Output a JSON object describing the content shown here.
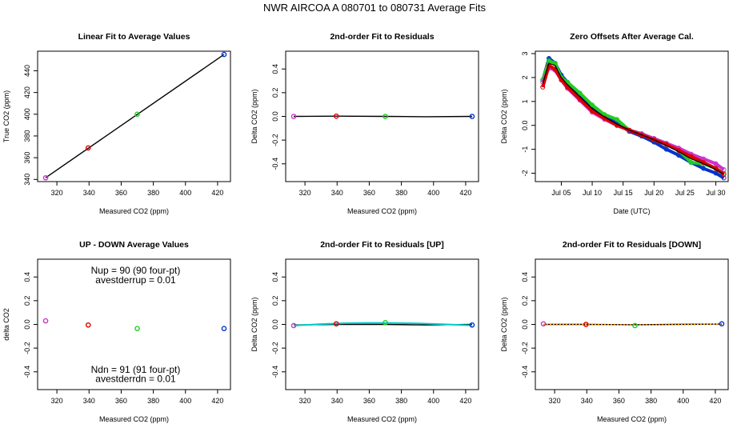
{
  "figure_title": "NWR   AIRCOA A   080701 to 080731   Average Fits",
  "colors": {
    "purple": "#cc33cc",
    "red": "#dd0000",
    "green": "#22cc22",
    "blue": "#0033cc",
    "cyan": "#00cccc",
    "orange": "#ff9900",
    "black": "#000000"
  },
  "chart_data": [
    {
      "id": "p1",
      "type": "scatter",
      "title": "Linear Fit to Average Values",
      "xlabel": "Measured CO2 (ppm)",
      "ylabel": "True CO2 (ppm)",
      "xlim": [
        308,
        428
      ],
      "ylim": [
        338,
        458
      ],
      "xticks": [
        320,
        340,
        360,
        380,
        400,
        420
      ],
      "yticks": [
        340,
        360,
        380,
        400,
        420,
        440
      ],
      "points": [
        {
          "x": 313,
          "y": 341.5,
          "color": "purple"
        },
        {
          "x": 339.5,
          "y": 369,
          "color": "red"
        },
        {
          "x": 370,
          "y": 400,
          "color": "green"
        },
        {
          "x": 424,
          "y": 455,
          "color": "blue"
        }
      ],
      "fit_line": {
        "x": [
          313,
          424
        ],
        "y": [
          341.5,
          455
        ],
        "color": "black"
      }
    },
    {
      "id": "p2",
      "type": "scatter",
      "title": "2nd-order Fit to Residuals",
      "xlabel": "Measured CO2 (ppm)",
      "ylabel": "Delta CO2 (ppm)",
      "xlim": [
        308,
        428
      ],
      "ylim": [
        -0.55,
        0.55
      ],
      "xticks": [
        320,
        340,
        360,
        380,
        400,
        420
      ],
      "yticks": [
        -0.4,
        -0.2,
        0.0,
        0.2,
        0.4
      ],
      "points": [
        {
          "x": 313,
          "y": 0,
          "color": "purple"
        },
        {
          "x": 339.5,
          "y": 0.002,
          "color": "red"
        },
        {
          "x": 370,
          "y": 0,
          "color": "green"
        },
        {
          "x": 424,
          "y": 0,
          "color": "blue"
        }
      ],
      "fit_line": {
        "x": [
          313,
          340,
          370,
          395,
          424
        ],
        "y": [
          0,
          0.002,
          0,
          -0.003,
          0
        ],
        "color": "black"
      }
    },
    {
      "id": "p3",
      "type": "line",
      "title": "Zero Offsets After Average Cal.",
      "xlabel": "Date (UTC)",
      "ylabel": "Delta CO2 (ppm)",
      "xlim": [
        0.8,
        32
      ],
      "ylim": [
        -2.35,
        3.1
      ],
      "xticks": [
        5,
        10,
        15,
        20,
        25,
        30
      ],
      "xticklabels": [
        "Jul 05",
        "Jul 10",
        "Jul 15",
        "Jul 20",
        "Jul 25",
        "Jul 30"
      ],
      "yticks": [
        -2,
        -1,
        0,
        1,
        2,
        3
      ],
      "series": [
        {
          "name": "blue",
          "color": "blue",
          "x": [
            2,
            3,
            4,
            5,
            6,
            8,
            10,
            12,
            14,
            16,
            18,
            20,
            22,
            24,
            26,
            28,
            30,
            31.3
          ],
          "y": [
            1.9,
            2.8,
            2.6,
            2.1,
            1.8,
            1.3,
            0.8,
            0.4,
            0.1,
            -0.25,
            -0.45,
            -0.7,
            -1.0,
            -1.25,
            -1.55,
            -1.8,
            -2.0,
            -2.2
          ]
        },
        {
          "name": "green",
          "color": "green",
          "x": [
            2,
            3,
            4,
            5,
            6,
            8,
            10,
            12,
            14,
            16,
            18,
            20,
            22,
            24,
            26,
            28,
            30,
            31.3
          ],
          "y": [
            1.9,
            2.7,
            2.6,
            2.0,
            1.8,
            1.35,
            0.85,
            0.45,
            0.25,
            -0.2,
            -0.35,
            -0.55,
            -0.75,
            -1.05,
            -1.55,
            -1.6,
            -1.8,
            -2.0
          ]
        },
        {
          "name": "purple",
          "color": "purple",
          "x": [
            2,
            3,
            4,
            5,
            6,
            8,
            10,
            12,
            14,
            16,
            18,
            20,
            22,
            24,
            26,
            28,
            30,
            31.3
          ],
          "y": [
            1.8,
            2.4,
            2.3,
            1.9,
            1.55,
            1.05,
            0.55,
            0.25,
            0.0,
            -0.2,
            -0.35,
            -0.55,
            -0.75,
            -0.95,
            -1.2,
            -1.4,
            -1.6,
            -1.85
          ]
        },
        {
          "name": "red",
          "color": "red",
          "x": [
            2,
            3,
            4,
            5,
            6,
            8,
            10,
            12,
            14,
            16,
            18,
            20,
            22,
            24,
            26,
            28,
            30,
            31.3
          ],
          "y": [
            1.6,
            2.5,
            2.35,
            1.9,
            1.6,
            1.1,
            0.6,
            0.3,
            0.0,
            -0.2,
            -0.4,
            -0.6,
            -0.8,
            -1.05,
            -1.3,
            -1.55,
            -1.8,
            -2.05
          ]
        },
        {
          "name": "black",
          "color": "black",
          "x": [
            2,
            3,
            4,
            5,
            6,
            8,
            10,
            12,
            14,
            16,
            18,
            20,
            22,
            24,
            26,
            28,
            30,
            31.3
          ],
          "y": [
            1.75,
            2.6,
            2.5,
            2.0,
            1.7,
            1.2,
            0.7,
            0.35,
            0.05,
            -0.2,
            -0.4,
            -0.6,
            -0.85,
            -1.1,
            -1.4,
            -1.6,
            -1.85,
            -2.05
          ]
        }
      ]
    },
    {
      "id": "p4",
      "type": "scatter",
      "title": "UP - DOWN Average Values",
      "xlabel": "Measured CO2 (ppm)",
      "ylabel": "delta CO2",
      "xlim": [
        308,
        428
      ],
      "ylim": [
        -0.55,
        0.55
      ],
      "xticks": [
        320,
        340,
        360,
        380,
        400,
        420
      ],
      "yticks": [
        -0.4,
        -0.2,
        0.0,
        0.2,
        0.4
      ],
      "points": [
        {
          "x": 313,
          "y": 0.03,
          "color": "purple"
        },
        {
          "x": 339.5,
          "y": -0.005,
          "color": "red"
        },
        {
          "x": 370,
          "y": -0.035,
          "color": "green"
        },
        {
          "x": 424,
          "y": -0.035,
          "color": "blue"
        }
      ],
      "annotations": [
        {
          "text": "Nup = 90 (90 four-pt)",
          "x": 369,
          "y": 0.455
        },
        {
          "text": "avestderrup =  0.01",
          "x": 369,
          "y": 0.375
        },
        {
          "text": "Ndn = 91 (91 four-pt)",
          "x": 369,
          "y": -0.38
        },
        {
          "text": "avestderrdn =  0.01",
          "x": 369,
          "y": -0.46
        }
      ]
    },
    {
      "id": "p5",
      "type": "scatter",
      "title": "2nd-order Fit to Residuals [UP]",
      "xlabel": "Measured CO2 (ppm)",
      "ylabel": "Delta CO2 (ppm)",
      "xlim": [
        308,
        428
      ],
      "ylim": [
        -0.55,
        0.55
      ],
      "xticks": [
        320,
        340,
        360,
        380,
        400,
        420
      ],
      "yticks": [
        -0.4,
        -0.2,
        0.0,
        0.2,
        0.4
      ],
      "points": [
        {
          "x": 313,
          "y": -0.01,
          "color": "purple"
        },
        {
          "x": 339.5,
          "y": 0.005,
          "color": "red"
        },
        {
          "x": 370,
          "y": 0.015,
          "color": "green"
        },
        {
          "x": 424,
          "y": -0.005,
          "color": "blue"
        }
      ],
      "fit_line": {
        "x": [
          313,
          340,
          370,
          395,
          424
        ],
        "y": [
          -0.005,
          0.0,
          0.0,
          -0.005,
          0.0
        ],
        "color": "black"
      },
      "fit_line2": {
        "x": [
          313,
          330,
          345,
          360,
          375,
          390,
          405,
          424
        ],
        "y": [
          -0.01,
          0.003,
          0.01,
          0.013,
          0.012,
          0.008,
          0.002,
          -0.008
        ],
        "color": "cyan"
      }
    },
    {
      "id": "p6",
      "type": "scatter",
      "title": "2nd-order Fit to Residuals [DOWN]",
      "xlabel": "Measured CO2 (ppm)",
      "ylabel": "Delta CO2 (ppm)",
      "xlim": [
        308,
        428
      ],
      "ylim": [
        -0.55,
        0.55
      ],
      "xticks": [
        320,
        340,
        360,
        380,
        400,
        420
      ],
      "yticks": [
        -0.4,
        -0.2,
        0.0,
        0.2,
        0.4
      ],
      "points": [
        {
          "x": 313,
          "y": 0.005,
          "color": "purple"
        },
        {
          "x": 339.5,
          "y": 0.0,
          "color": "red"
        },
        {
          "x": 370,
          "y": -0.01,
          "color": "green"
        },
        {
          "x": 424,
          "y": 0.005,
          "color": "blue"
        }
      ],
      "fit_line": {
        "x": [
          313,
          340,
          370,
          395,
          424
        ],
        "y": [
          0.0,
          0.0,
          -0.003,
          0.0,
          0.003
        ],
        "color": "black"
      },
      "fit_line2": {
        "x": [
          313,
          340,
          370,
          395,
          424
        ],
        "y": [
          0.002,
          0.0,
          -0.005,
          -0.002,
          0.003
        ],
        "color": "orange",
        "dashed": true
      }
    }
  ]
}
